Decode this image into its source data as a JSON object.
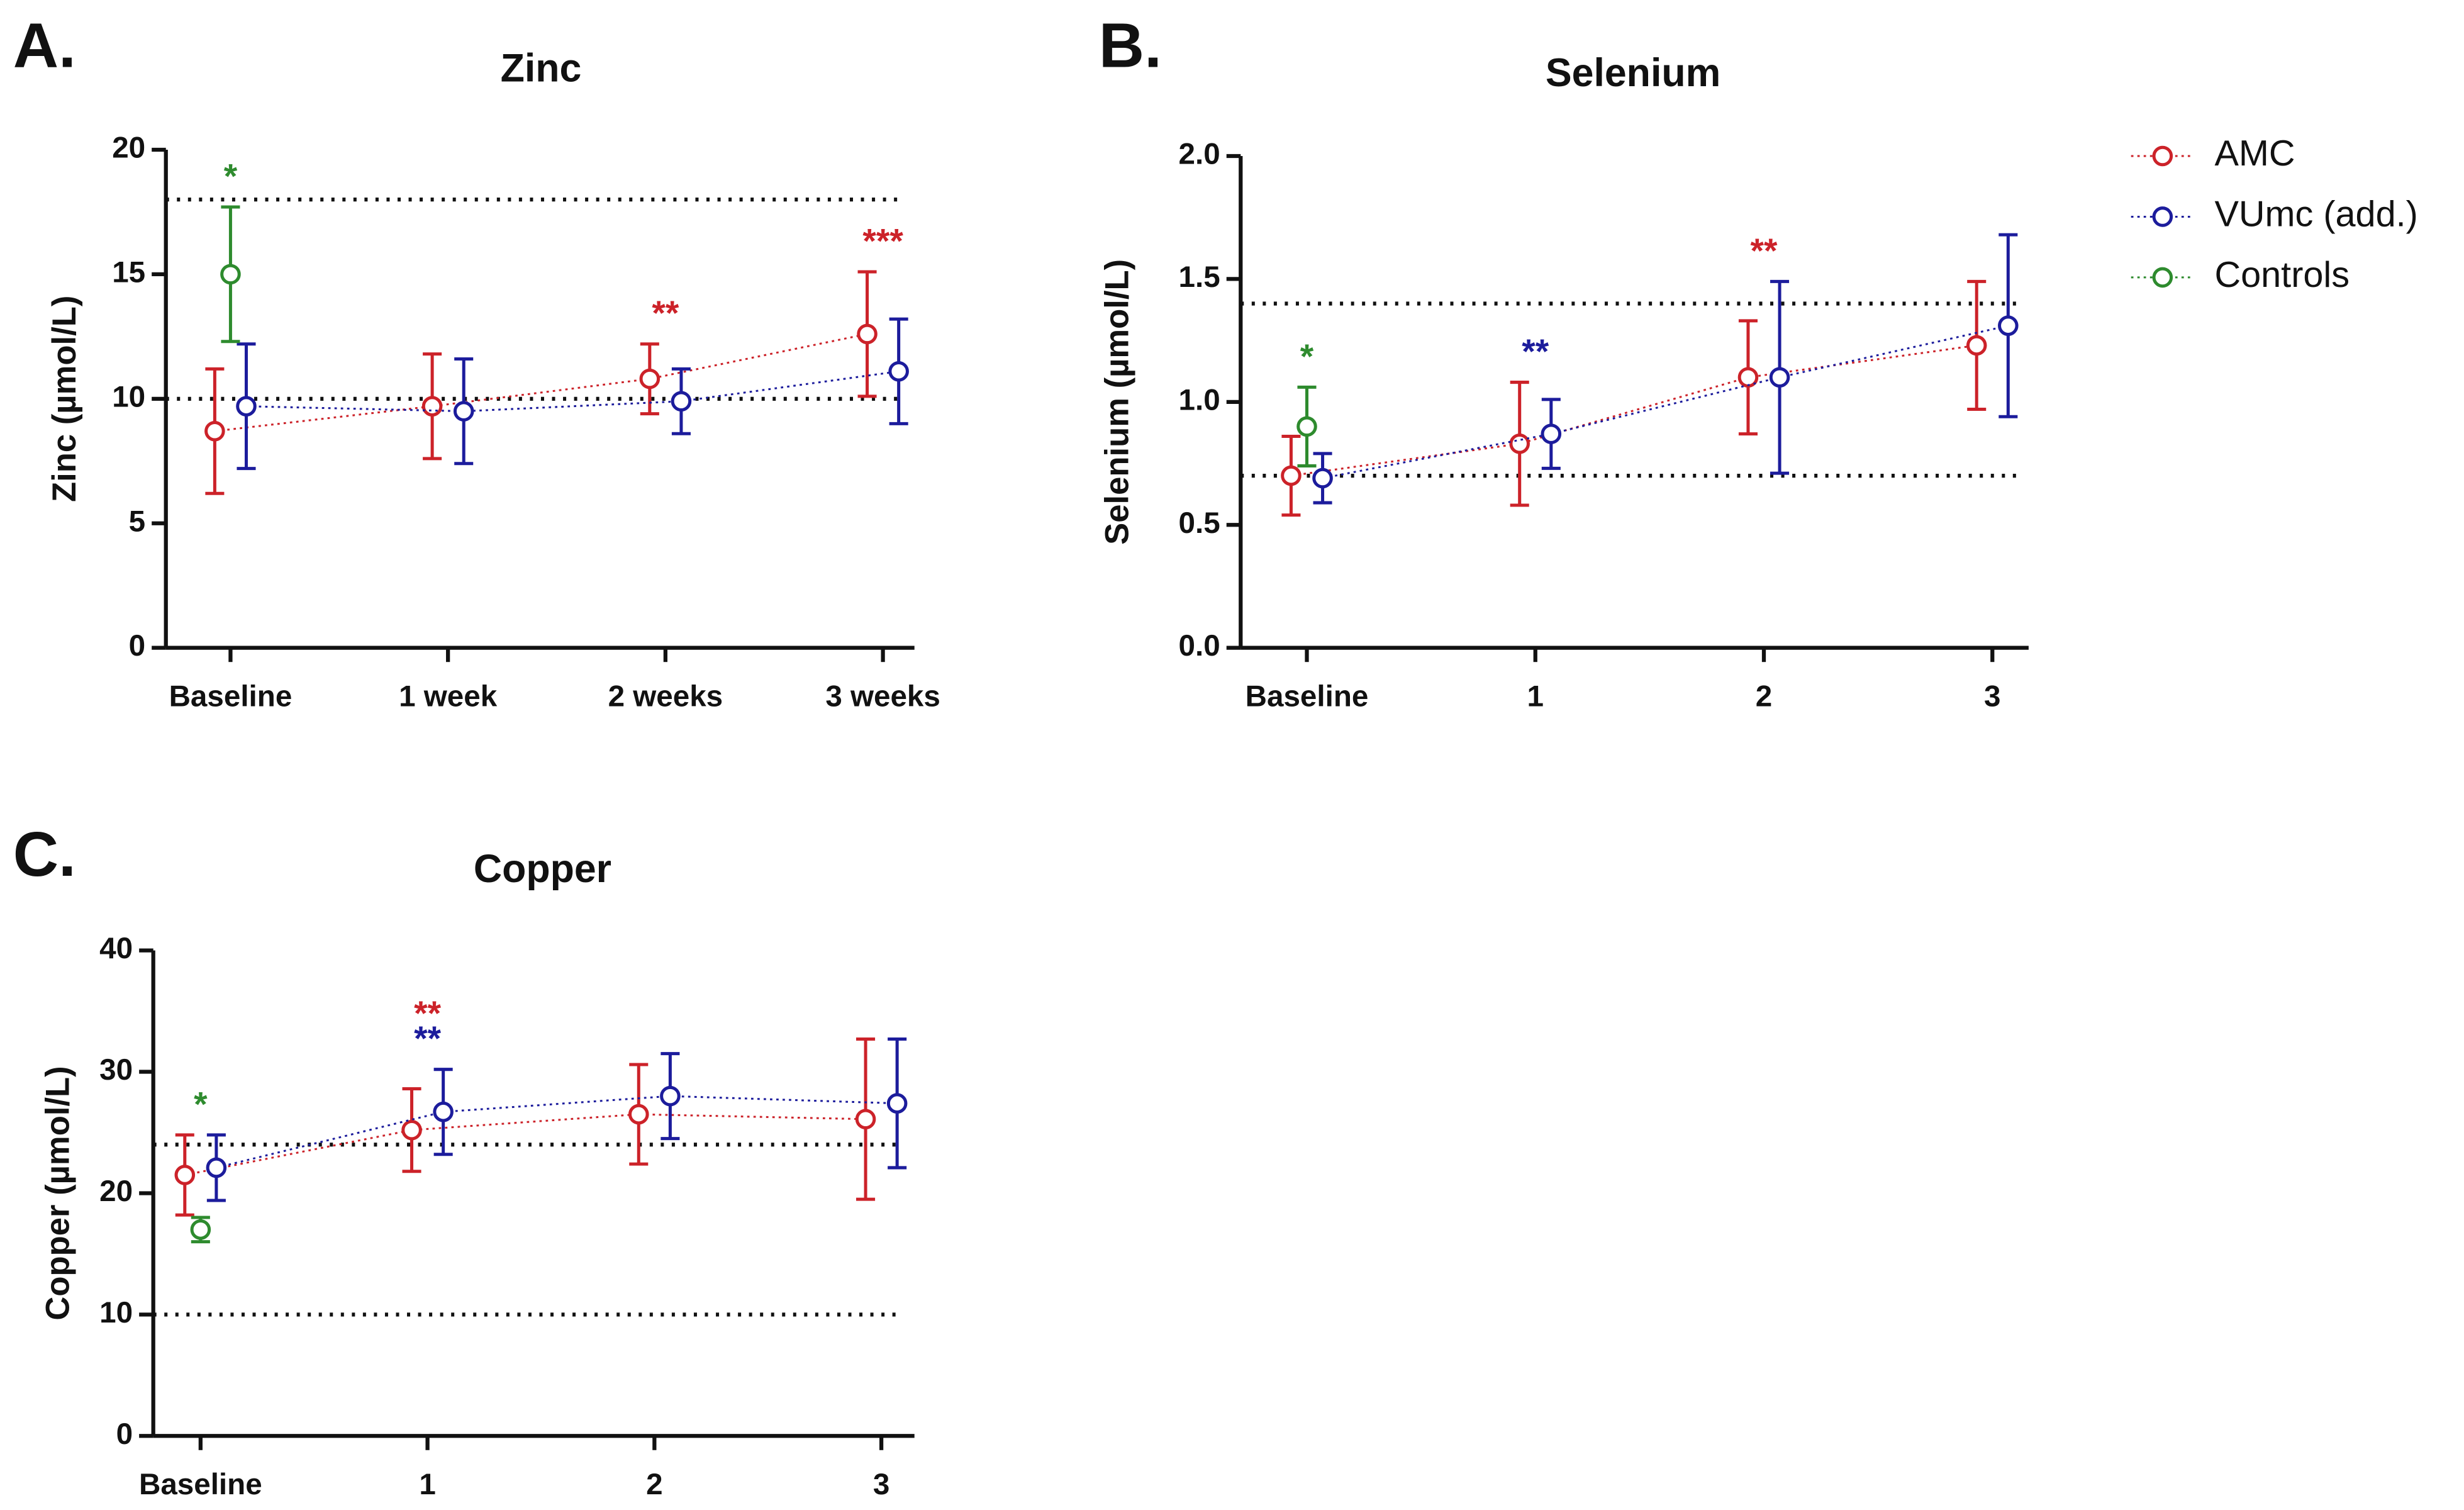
{
  "chart_data": [
    {
      "type": "errorbar",
      "panel": "A.",
      "title": "Zinc",
      "y_label": "Zinc (µmol/L)",
      "categories": [
        "Baseline",
        "1 week",
        "2 weeks",
        "3 weeks"
      ],
      "ylim": [
        0,
        20
      ],
      "yticks": [
        0,
        5,
        10,
        15,
        20
      ],
      "reference_lines": [
        18,
        10
      ],
      "series": [
        {
          "name": "AMC",
          "color": "#cc2229",
          "values": [
            8.7,
            9.7,
            10.8,
            12.6
          ],
          "errors": [
            2.5,
            2.1,
            1.4,
            2.5
          ],
          "significance": [
            null,
            null,
            "**",
            "***"
          ]
        },
        {
          "name": "VUmc (add.)",
          "color": "#1c1c9c",
          "values": [
            9.7,
            9.5,
            9.9,
            11.1
          ],
          "errors": [
            2.5,
            2.1,
            1.3,
            2.1
          ]
        },
        {
          "name": "Controls",
          "color": "#2e8b2e",
          "values": [
            15.0,
            null,
            null,
            null
          ],
          "errors": [
            2.7,
            null,
            null,
            null
          ],
          "significance": [
            "*",
            null,
            null,
            null
          ]
        }
      ]
    },
    {
      "type": "errorbar",
      "panel": "B.",
      "title": "Selenium",
      "y_label": "Selenium (µmol/L)",
      "categories": [
        "Baseline",
        "1",
        "2",
        "3"
      ],
      "ylim": [
        0,
        2
      ],
      "yticks": [
        {
          "value": 0,
          "label": "0.0"
        },
        0.5,
        {
          "value": 1,
          "label": "1.0"
        },
        1.5,
        {
          "value": 2,
          "label": "2.0"
        }
      ],
      "reference_lines": [
        1.4,
        0.7
      ],
      "legend": "right",
      "series": [
        {
          "name": "AMC",
          "color": "#cc2229",
          "values": [
            0.7,
            0.83,
            1.1,
            1.23
          ],
          "errors": [
            0.16,
            0.25,
            0.23,
            0.26
          ],
          "significance": [
            null,
            null,
            "**",
            null
          ]
        },
        {
          "name": "VUmc (add.)",
          "color": "#1c1c9c",
          "values": [
            0.69,
            0.87,
            1.1,
            1.31
          ],
          "errors": [
            0.1,
            0.14,
            0.39,
            0.37
          ],
          "significance": [
            null,
            "**",
            null,
            null
          ]
        },
        {
          "name": "Controls",
          "color": "#2e8b2e",
          "values": [
            0.9,
            null,
            null,
            null
          ],
          "errors": [
            0.16,
            null,
            null,
            null
          ],
          "significance": [
            "*",
            null,
            null,
            null
          ]
        }
      ]
    },
    {
      "type": "errorbar",
      "panel": "C.",
      "title": "Copper",
      "y_label": "Copper (µmol/L)",
      "categories": [
        "Baseline",
        "1",
        "2",
        "3"
      ],
      "ylim": [
        0,
        40
      ],
      "yticks": [
        0,
        10,
        20,
        30,
        40
      ],
      "reference_lines": [
        24,
        10
      ],
      "series": [
        {
          "name": "AMC",
          "color": "#cc2229",
          "values": [
            21.5,
            25.2,
            26.5,
            26.1
          ],
          "errors": [
            3.3,
            3.4,
            4.1,
            6.6
          ],
          "significance": [
            null,
            "**",
            null,
            null
          ]
        },
        {
          "name": "VUmc (add.)",
          "color": "#1c1c9c",
          "values": [
            22.1,
            26.7,
            28.0,
            27.4
          ],
          "errors": [
            2.7,
            3.5,
            3.5,
            5.3
          ],
          "significance": [
            null,
            "**",
            null,
            null
          ]
        },
        {
          "name": "Controls",
          "color": "#2e8b2e",
          "values": [
            17.0,
            null,
            null,
            null
          ],
          "errors": [
            1.0,
            null,
            null,
            null
          ],
          "significance": [
            "*",
            null,
            null,
            null
          ]
        }
      ]
    }
  ]
}
